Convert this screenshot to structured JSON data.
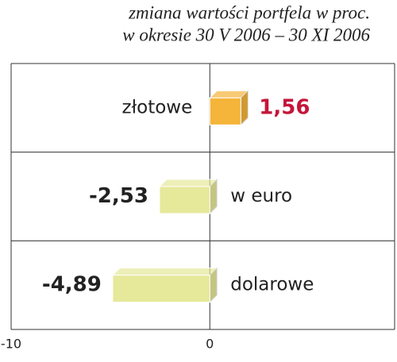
{
  "chart_data": {
    "type": "hbar",
    "title": "zmiana wartości portfela w proc.",
    "subtitle": "w okresie 30 V 2006 – 30 XI 2006",
    "categories": [
      "złotowe",
      "w euro",
      "dolarowe"
    ],
    "values": [
      1.56,
      -2.53,
      -4.89
    ],
    "value_labels": [
      "1,56",
      "-2,53",
      "-4,89"
    ],
    "colors": [
      "#f5b43a",
      "#e6e89a",
      "#e6e89a"
    ],
    "value_label_colors": [
      "#c4163a",
      "#222222",
      "#222222"
    ],
    "xlim": [
      -10,
      9.3
    ],
    "xticks": [
      -10,
      0
    ]
  }
}
